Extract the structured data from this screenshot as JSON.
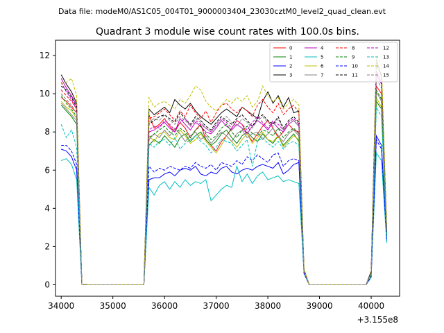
{
  "figure": {
    "suptitle": "Data file: modeM0/AS1C05_004T01_9000003404_23030cztM0_level2_quad_clean.evt",
    "offset_label": "+3.155e8"
  },
  "chart_data": {
    "type": "line",
    "title": "Quadrant 3 module wise count rates with 100.0s bins.",
    "xlabel": "",
    "ylabel": "",
    "x_offset": 315500000,
    "xlim": [
      33890,
      40550
    ],
    "ylim": [
      -0.6,
      12.8
    ],
    "xticks": [
      34000,
      35000,
      36000,
      37000,
      38000,
      39000,
      40000
    ],
    "yticks": [
      0,
      2,
      4,
      6,
      8,
      10,
      12
    ],
    "grid": false,
    "legend_placement": "top-right",
    "x": [
      34000,
      34100,
      34200,
      34300,
      34400,
      34500,
      34600,
      34700,
      34800,
      34900,
      35000,
      35100,
      35200,
      35300,
      35400,
      35500,
      35600,
      35700,
      35800,
      35900,
      36000,
      36100,
      36200,
      36300,
      36400,
      36500,
      36600,
      36700,
      36800,
      36900,
      37000,
      37100,
      37200,
      37300,
      37400,
      37500,
      37600,
      37700,
      37800,
      37900,
      38000,
      38100,
      38200,
      38300,
      38400,
      38500,
      38600,
      38700,
      38800,
      38900,
      39000,
      39100,
      39200,
      39300,
      39400,
      39500,
      39600,
      39700,
      39800,
      39900,
      40000,
      40100,
      40200,
      40300
    ],
    "series": [
      {
        "name": "0",
        "color": "#ff0000",
        "style": "solid",
        "values": [
          9.8,
          9.6,
          9.3,
          9.0,
          0.02,
          0,
          0,
          0,
          0,
          0,
          0,
          0,
          0,
          0,
          0,
          0,
          0,
          8.9,
          8.2,
          8.4,
          8.7,
          8.3,
          8.0,
          8.5,
          8.2,
          7.7,
          8.1,
          8.4,
          7.6,
          7.3,
          7.0,
          7.5,
          7.8,
          8.2,
          8.6,
          8.4,
          7.9,
          7.5,
          7.9,
          8.3,
          8.6,
          8.2,
          7.7,
          8.0,
          8.4,
          8.1,
          8.0,
          0.7,
          0,
          0,
          0,
          0,
          0,
          0,
          0,
          0,
          0,
          0,
          0,
          0,
          0.6,
          10.4,
          10.0,
          2.6
        ]
      },
      {
        "name": "1",
        "color": "#008000",
        "style": "solid",
        "values": [
          9.4,
          9.1,
          8.8,
          8.4,
          0.02,
          0,
          0,
          0,
          0,
          0,
          0,
          0,
          0,
          0,
          0,
          0,
          0,
          7.3,
          7.6,
          7.4,
          7.8,
          7.5,
          7.2,
          7.7,
          7.9,
          7.5,
          7.8,
          8.0,
          7.6,
          7.3,
          7.5,
          7.9,
          8.1,
          7.7,
          7.4,
          7.8,
          8.0,
          7.7,
          7.5,
          7.9,
          7.6,
          7.4,
          7.8,
          7.3,
          7.6,
          7.9,
          7.5,
          0.7,
          0,
          0,
          0,
          0,
          0,
          0,
          0,
          0,
          0,
          0,
          0,
          0,
          0.5,
          9.6,
          9.2,
          2.5
        ]
      },
      {
        "name": "2",
        "color": "#0000ff",
        "style": "solid",
        "values": [
          7.1,
          7.0,
          6.7,
          6.0,
          0.02,
          0,
          0,
          0,
          0,
          0,
          0,
          0,
          0,
          0,
          0,
          0,
          0,
          5.5,
          5.6,
          5.6,
          5.8,
          5.9,
          5.7,
          6.0,
          6.1,
          6.0,
          6.2,
          5.8,
          5.7,
          5.9,
          5.8,
          6.1,
          6.2,
          5.9,
          5.8,
          6.0,
          6.1,
          6.0,
          6.2,
          6.3,
          6.2,
          6.1,
          6.4,
          5.8,
          6.0,
          6.3,
          6.4,
          0.6,
          0,
          0,
          0,
          0,
          0,
          0,
          0,
          0,
          0,
          0,
          0,
          0,
          0.4,
          7.8,
          7.3,
          2.3
        ]
      },
      {
        "name": "3",
        "color": "#000000",
        "style": "solid",
        "values": [
          11.0,
          10.5,
          10.1,
          9.5,
          0.02,
          0,
          0,
          0,
          0,
          0,
          0,
          0,
          0,
          0,
          0,
          0,
          0,
          9.2,
          8.9,
          9.1,
          9.3,
          9.0,
          9.7,
          9.4,
          9.2,
          9.5,
          9.1,
          8.8,
          8.6,
          8.4,
          8.7,
          9.0,
          9.2,
          9.0,
          8.8,
          9.3,
          9.1,
          8.9,
          8.7,
          9.6,
          10.1,
          9.5,
          9.9,
          9.3,
          9.8,
          9.0,
          9.1,
          0.8,
          0,
          0,
          0,
          0,
          0,
          0,
          0,
          0,
          0,
          0,
          0,
          0,
          0.7,
          11.8,
          10.9,
          3.0
        ]
      },
      {
        "name": "4",
        "color": "#bf00bf",
        "style": "solid",
        "values": [
          10.8,
          10.3,
          9.9,
          9.4,
          0.02,
          0,
          0,
          0,
          0,
          0,
          0,
          0,
          0,
          0,
          0,
          0,
          0,
          8.0,
          8.1,
          8.3,
          8.5,
          8.2,
          8.0,
          8.7,
          8.4,
          8.1,
          8.5,
          8.3,
          8.0,
          7.9,
          8.2,
          8.6,
          8.3,
          8.1,
          8.4,
          8.2,
          7.9,
          8.3,
          8.6,
          8.4,
          8.1,
          8.5,
          8.2,
          8.0,
          8.4,
          8.6,
          8.3,
          0.7,
          0,
          0,
          0,
          0,
          0,
          0,
          0,
          0,
          0,
          0,
          0,
          0,
          0.6,
          11.0,
          10.5,
          2.8
        ]
      },
      {
        "name": "5",
        "color": "#00bfbf",
        "style": "solid",
        "values": [
          6.5,
          6.6,
          6.3,
          5.5,
          0.02,
          0,
          0,
          0,
          0,
          0,
          0,
          0,
          0,
          0,
          0,
          0,
          0,
          5.1,
          4.7,
          5.2,
          5.4,
          5.0,
          5.4,
          5.1,
          5.5,
          5.2,
          5.4,
          5.3,
          5.5,
          4.4,
          4.7,
          5.0,
          5.2,
          5.1,
          6.2,
          5.4,
          5.8,
          5.3,
          5.7,
          5.9,
          5.5,
          5.6,
          5.7,
          5.4,
          5.5,
          5.4,
          5.3,
          0.6,
          0,
          0,
          0,
          0,
          0,
          0,
          0,
          0,
          0,
          0,
          0,
          0,
          0.4,
          6.9,
          6.5,
          2.2
        ]
      },
      {
        "name": "6",
        "color": "#bfbf00",
        "style": "solid",
        "values": [
          9.6,
          9.3,
          9.1,
          8.7,
          0.02,
          0,
          0,
          0,
          0,
          0,
          0,
          0,
          0,
          0,
          0,
          0,
          0,
          7.8,
          7.5,
          7.9,
          8.0,
          7.7,
          7.6,
          8.1,
          7.8,
          7.4,
          7.6,
          7.9,
          7.5,
          7.2,
          6.9,
          7.3,
          7.8,
          7.5,
          7.2,
          7.6,
          7.9,
          7.4,
          7.7,
          8.0,
          7.6,
          7.5,
          7.8,
          7.2,
          7.5,
          7.8,
          7.6,
          0.7,
          0,
          0,
          0,
          0,
          0,
          0,
          0,
          0,
          0,
          0,
          0,
          0,
          0.5,
          9.8,
          9.3,
          2.6
        ]
      },
      {
        "name": "7",
        "color": "#808080",
        "style": "solid",
        "values": [
          9.5,
          9.2,
          8.9,
          8.6,
          0.02,
          0,
          0,
          0,
          0,
          0,
          0,
          0,
          0,
          0,
          0,
          0,
          0,
          7.6,
          7.9,
          7.7,
          8.1,
          7.8,
          8.2,
          7.9,
          7.5,
          7.8,
          8.0,
          7.6,
          7.8,
          7.4,
          7.7,
          8.0,
          7.8,
          7.5,
          7.9,
          8.1,
          7.7,
          7.9,
          8.0,
          7.6,
          7.9,
          8.2,
          7.8,
          7.5,
          7.9,
          8.1,
          7.8,
          0.7,
          0,
          0,
          0,
          0,
          0,
          0,
          0,
          0,
          0,
          0,
          0,
          0,
          0.5,
          10.1,
          9.6,
          2.7
        ]
      },
      {
        "name": "8",
        "color": "#ff0000",
        "style": "dashed",
        "values": [
          10.2,
          9.9,
          9.6,
          9.2,
          0.02,
          0,
          0,
          0,
          0,
          0,
          0,
          0,
          0,
          0,
          0,
          0,
          0,
          8.7,
          8.8,
          9.0,
          9.2,
          8.9,
          8.6,
          9.1,
          8.8,
          9.4,
          9.0,
          8.7,
          9.1,
          8.5,
          9.0,
          9.4,
          9.5,
          9.2,
          9.0,
          9.3,
          9.1,
          8.8,
          9.4,
          9.7,
          9.3,
          9.0,
          9.5,
          8.9,
          9.2,
          9.4,
          9.0,
          0.8,
          0,
          0,
          0,
          0,
          0,
          0,
          0,
          0,
          0,
          0,
          0,
          0,
          0.6,
          11.2,
          10.7,
          2.9
        ]
      },
      {
        "name": "9",
        "color": "#008000",
        "style": "dashed",
        "values": [
          9.9,
          9.5,
          9.2,
          8.8,
          0.02,
          0,
          0,
          0,
          0,
          0,
          0,
          0,
          0,
          0,
          0,
          0,
          0,
          7.7,
          7.9,
          8.1,
          8.3,
          8.0,
          7.8,
          8.2,
          8.0,
          7.7,
          8.1,
          8.3,
          7.9,
          7.6,
          7.8,
          8.2,
          8.4,
          8.0,
          7.7,
          8.1,
          8.3,
          7.9,
          7.8,
          8.1,
          8.0,
          7.8,
          8.2,
          7.7,
          8.0,
          8.2,
          7.9,
          0.7,
          0,
          0,
          0,
          0,
          0,
          0,
          0,
          0,
          0,
          0,
          0,
          0,
          0.5,
          10.2,
          9.7,
          2.7
        ]
      },
      {
        "name": "10",
        "color": "#0000ff",
        "style": "dashed",
        "values": [
          7.3,
          7.3,
          7.0,
          6.3,
          0.02,
          0,
          0,
          0,
          0,
          0,
          0,
          0,
          0,
          0,
          0,
          0,
          0,
          6.2,
          5.9,
          6.1,
          6.0,
          6.2,
          6.1,
          6.0,
          6.2,
          6.1,
          6.4,
          6.2,
          6.1,
          6.3,
          6.0,
          6.4,
          6.3,
          6.2,
          6.5,
          6.3,
          6.7,
          6.5,
          6.8,
          6.6,
          6.4,
          6.8,
          6.9,
          6.2,
          6.5,
          6.6,
          6.5,
          0.6,
          0,
          0,
          0,
          0,
          0,
          0,
          0,
          0,
          0,
          0,
          0,
          0,
          0.4,
          7.6,
          7.1,
          2.4
        ]
      },
      {
        "name": "11",
        "color": "#000000",
        "style": "dashed",
        "values": [
          10.4,
          10.2,
          9.8,
          9.3,
          0.02,
          0,
          0,
          0,
          0,
          0,
          0,
          0,
          0,
          0,
          0,
          0,
          0,
          8.4,
          8.6,
          8.8,
          8.9,
          8.7,
          8.5,
          9.0,
          8.7,
          8.4,
          8.8,
          8.6,
          8.3,
          8.1,
          8.5,
          8.8,
          8.6,
          8.4,
          8.7,
          8.9,
          8.6,
          8.3,
          8.7,
          8.9,
          8.6,
          8.4,
          8.8,
          8.2,
          8.6,
          8.8,
          8.5,
          0.8,
          0,
          0,
          0,
          0,
          0,
          0,
          0,
          0,
          0,
          0,
          0,
          0,
          0.6,
          11.5,
          11.0,
          2.9
        ]
      },
      {
        "name": "12",
        "color": "#bf00bf",
        "style": "dashed",
        "values": [
          10.6,
          10.1,
          9.7,
          9.2,
          0.02,
          0,
          0,
          0,
          0,
          0,
          0,
          0,
          0,
          0,
          0,
          0,
          0,
          8.1,
          8.3,
          8.2,
          8.6,
          8.4,
          8.1,
          8.5,
          8.7,
          8.3,
          8.6,
          8.4,
          8.2,
          8.0,
          8.4,
          8.7,
          8.5,
          8.2,
          8.6,
          8.4,
          8.1,
          8.5,
          8.8,
          8.5,
          8.2,
          8.6,
          8.4,
          8.1,
          8.5,
          8.7,
          8.4,
          0.7,
          0,
          0,
          0,
          0,
          0,
          0,
          0,
          0,
          0,
          0,
          0,
          0,
          0.6,
          11.1,
          10.6,
          2.8
        ]
      },
      {
        "name": "13",
        "color": "#00bfbf",
        "style": "dashed",
        "values": [
          8.4,
          7.7,
          8.1,
          7.2,
          0.02,
          0,
          0,
          0,
          0,
          0,
          0,
          0,
          0,
          0,
          0,
          0,
          0,
          7.4,
          7.2,
          7.5,
          7.6,
          7.3,
          7.7,
          7.1,
          7.4,
          7.6,
          7.8,
          7.5,
          7.3,
          6.9,
          7.2,
          7.6,
          7.5,
          7.4,
          7.0,
          7.3,
          7.6,
          6.2,
          7.5,
          7.7,
          7.4,
          7.2,
          7.5,
          7.1,
          7.4,
          7.5,
          7.3,
          0.7,
          0,
          0,
          0,
          0,
          0,
          0,
          0,
          0,
          0,
          0,
          0,
          0,
          0.5,
          9.3,
          8.8,
          2.5
        ]
      },
      {
        "name": "14",
        "color": "#bfbf00",
        "style": "dashed",
        "values": [
          10.5,
          10.6,
          10.8,
          9.9,
          0.02,
          0,
          0,
          0,
          0,
          0,
          0,
          0,
          0,
          0,
          0,
          0,
          0,
          9.8,
          9.3,
          9.5,
          9.6,
          9.4,
          9.2,
          9.7,
          9.5,
          9.9,
          10.4,
          10.2,
          9.6,
          9.3,
          9.1,
          9.4,
          9.7,
          9.5,
          9.8,
          9.6,
          9.9,
          9.3,
          9.6,
          10.4,
          9.9,
          9.6,
          9.8,
          9.2,
          9.5,
          9.7,
          9.4,
          0.8,
          0,
          0,
          0,
          0,
          0,
          0,
          0,
          0,
          0,
          0,
          0,
          0,
          0.6,
          12.0,
          11.5,
          3.0
        ]
      },
      {
        "name": "15",
        "color": "#808080",
        "style": "dashed",
        "values": [
          10.0,
          9.7,
          9.4,
          9.0,
          0.02,
          0,
          0,
          0,
          0,
          0,
          0,
          0,
          0,
          0,
          0,
          0,
          0,
          8.5,
          8.7,
          8.6,
          8.9,
          8.6,
          8.4,
          8.8,
          8.6,
          8.3,
          8.7,
          8.5,
          8.2,
          8.0,
          8.3,
          8.6,
          8.8,
          8.5,
          8.3,
          8.7,
          8.5,
          8.2,
          8.6,
          8.8,
          8.5,
          8.3,
          8.7,
          8.1,
          8.4,
          8.6,
          8.3,
          0.7,
          0,
          0,
          0,
          0,
          0,
          0,
          0,
          0,
          0,
          0,
          0,
          0,
          0.6,
          10.8,
          10.3,
          2.8
        ]
      }
    ]
  }
}
